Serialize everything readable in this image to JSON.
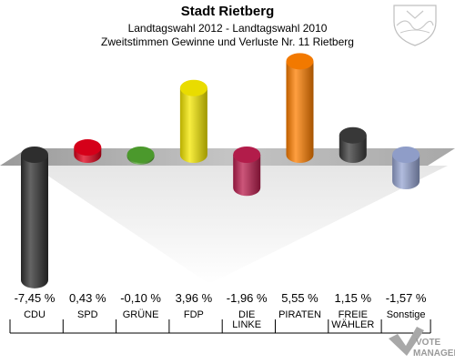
{
  "header": {
    "title": "Stadt Rietberg",
    "subtitle1": "Landtagswahl 2012 - Landtagswahl 2010",
    "subtitle2": "Zweitstimmen Gewinne und Verluste Nr. 11 Rietberg"
  },
  "brand": {
    "line1": "VOTE",
    "line2": "MANAGER"
  },
  "chart_data": {
    "type": "bar",
    "categories": [
      "CDU",
      "SPD",
      "GRÜNE",
      "FDP",
      "DIE LINKE",
      "PIRATEN",
      "FREIE WÄHLER",
      "Sonstige"
    ],
    "category_lines": [
      [
        "CDU"
      ],
      [
        "SPD"
      ],
      [
        "GRÜNE"
      ],
      [
        "FDP"
      ],
      [
        "DIE",
        "LINKE"
      ],
      [
        "PIRATEN"
      ],
      [
        "FREIE",
        "WÄHLER"
      ],
      [
        "Sonstige"
      ]
    ],
    "values": [
      -7.45,
      0.43,
      -0.1,
      3.96,
      -1.96,
      5.55,
      1.15,
      -1.57
    ],
    "value_labels": [
      "-7,45 %",
      "0,43 %",
      "-0,10 %",
      "3,96 %",
      "-1,96 %",
      "5,55 %",
      "1,15 %",
      "-1,57 %"
    ],
    "colors": [
      "#303030",
      "#e0001a",
      "#4fa12e",
      "#f5e800",
      "#bb1d4e",
      "#ff7f00",
      "#3b3b3b",
      "#97a5d3"
    ],
    "title": "Stadt Rietberg",
    "ylim": [
      -7.45,
      5.55
    ],
    "grid": false,
    "legend": "none"
  }
}
